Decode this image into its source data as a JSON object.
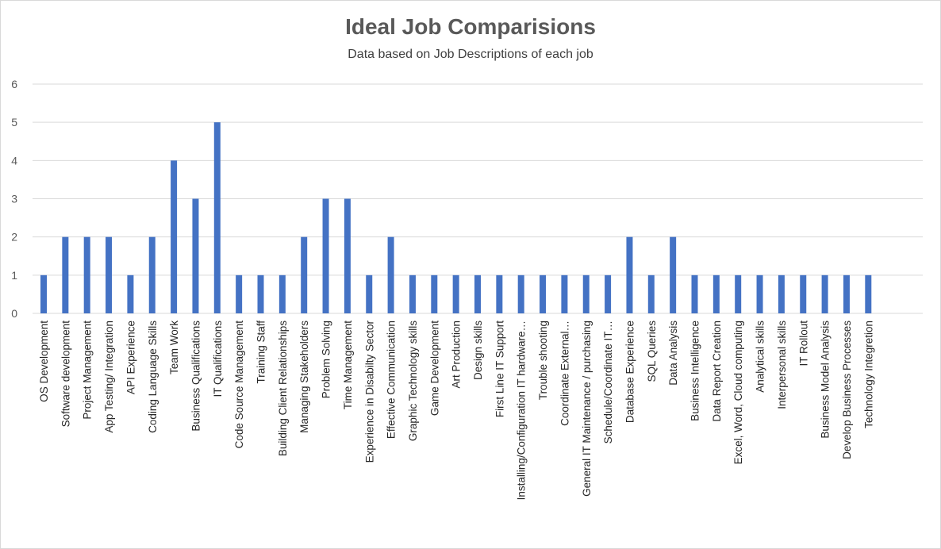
{
  "chart_data": {
    "type": "bar",
    "title": "Ideal Job Comparisions",
    "subtitle": "Data based on Job Descriptions of each job",
    "ylim": [
      0,
      6
    ],
    "yticks": [
      0,
      1,
      2,
      3,
      4,
      5,
      6
    ],
    "grid": true,
    "bar_color": "#4472C4",
    "categories": [
      "OS Development",
      "Software development",
      "Project Management",
      "App Testing/ Integration",
      "API Experience",
      "Coding Language Skills",
      "Team Work",
      "Business Qualifications",
      "IT Qualifications",
      "Code Source Management",
      "Training Staff",
      "Building Client Relationships",
      "Managing Stakeholders",
      "Problem Solving",
      "Time Management",
      "Experience in Disabilty Sector",
      "Effective Communication",
      "Graphic Technology skills",
      "Game Development",
      "Art Production",
      "Design skills",
      "First Line IT Support",
      "Installing/Configuration IT hardware…",
      "Trouble shooting",
      "Coordinate External…",
      "General IT Maintenance / purchasing",
      "Schedule/Coordinate IT…",
      "Database Experience",
      "SQL Queries",
      "Data Analysis",
      "Business Intelligence",
      "Data Report Creation",
      "Excel, Word, Cloud computing",
      "Analytical skills",
      "Interpersonal skills",
      "IT Rollout",
      "Business Model Analysis",
      "Develop Business Processes",
      "Technology Integretion"
    ],
    "values": [
      1,
      2,
      2,
      2,
      1,
      2,
      4,
      3,
      5,
      1,
      1,
      1,
      2,
      3,
      3,
      1,
      2,
      1,
      1,
      1,
      1,
      1,
      1,
      1,
      1,
      1,
      1,
      2,
      1,
      2,
      1,
      1,
      1,
      1,
      1,
      1,
      1,
      1,
      1
    ]
  }
}
